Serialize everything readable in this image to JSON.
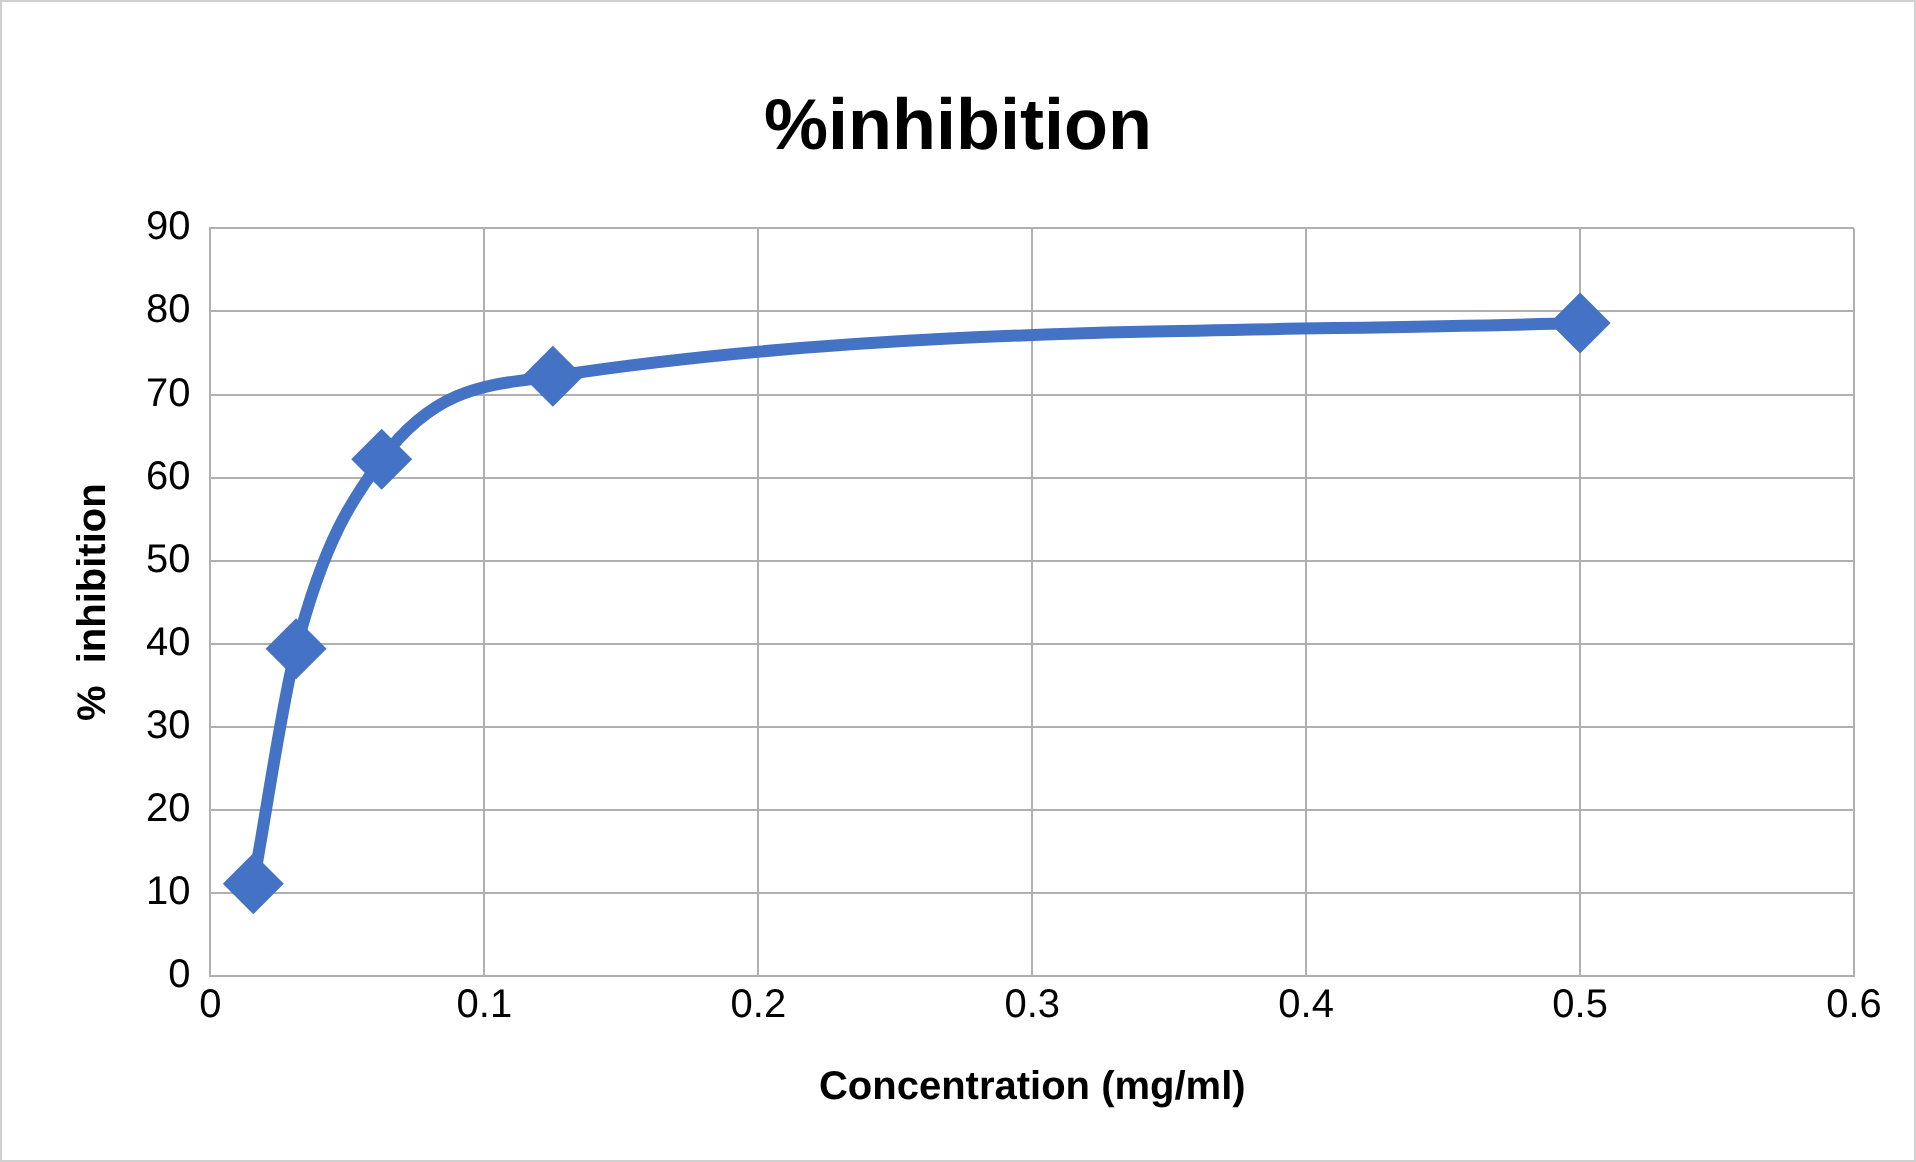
{
  "chart_data": {
    "type": "line",
    "title": "%inhibition",
    "xlabel": "Concentration (mg/ml)",
    "ylabel": "%  inhibition",
    "x": [
      0.015625,
      0.03125,
      0.0625,
      0.125,
      0.5
    ],
    "series": [
      {
        "color": "#4472c4",
        "values": [
          11.1,
          39.4,
          62.2,
          72.2,
          78.6
        ]
      }
    ],
    "xlim": [
      0,
      0.6
    ],
    "xticks": [
      0,
      0.1,
      0.2,
      0.3,
      0.4,
      0.5,
      0.6
    ],
    "ylim": [
      0,
      90
    ],
    "yticks": [
      0,
      10,
      20,
      30,
      40,
      50,
      60,
      70,
      80,
      90
    ],
    "grid": true,
    "legend": false,
    "marker": "diamond",
    "line_style": "solid"
  }
}
